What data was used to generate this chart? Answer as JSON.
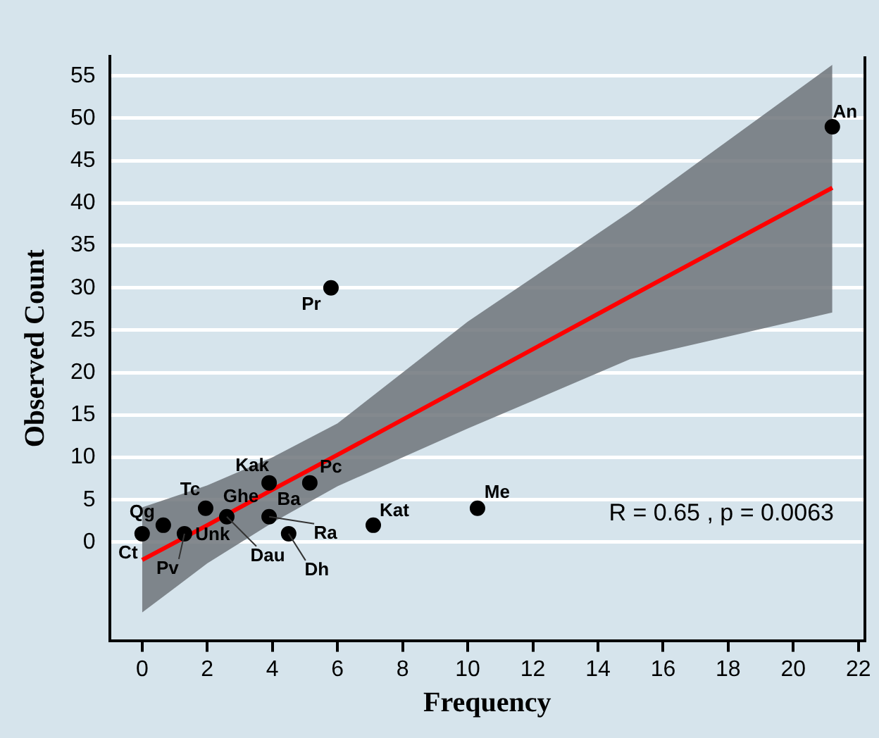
{
  "chart_data": {
    "type": "scatter",
    "xlabel": "Frequency",
    "ylabel": "Observed Count",
    "xlim": [
      -1,
      22.2
    ],
    "xticks": [
      0,
      2,
      4,
      6,
      8,
      10,
      12,
      14,
      16,
      18,
      20,
      22
    ],
    "ylim": [
      -11.6,
      57.3
    ],
    "yticks": [
      0,
      5,
      10,
      15,
      20,
      25,
      30,
      35,
      40,
      45,
      50,
      55
    ],
    "grid": "y",
    "series": [
      {
        "type": "scatter",
        "marker": "circle",
        "color": "#000000",
        "x": [
          0,
          0.65,
          1.3,
          1.95,
          2.6,
          3.9,
          5.15,
          3.9,
          4.5,
          7.1,
          10.3,
          5.8,
          21.2
        ],
        "values": [
          1,
          2,
          1,
          4,
          3,
          7,
          7,
          3,
          1,
          2,
          4,
          30,
          49
        ]
      },
      {
        "type": "line",
        "marker": "none",
        "color": "#ff0000",
        "x": [
          0,
          2,
          4,
          6,
          10,
          15,
          21.2
        ],
        "values": [
          -2.1,
          2.0,
          6.2,
          10.3,
          18.6,
          29,
          41.8
        ],
        "lower": [
          -8.3,
          -2.5,
          2.3,
          6.6,
          13.4,
          21.6,
          27.1
        ],
        "upper": [
          4.1,
          6.7,
          10,
          14,
          26,
          39,
          56.3
        ]
      }
    ],
    "annotations": [
      {
        "text": "Ct",
        "x": 0,
        "y": 1
      },
      {
        "text": "Qg",
        "x": 0.65,
        "y": 2
      },
      {
        "text": "Unk",
        "x": 1.3,
        "y": 1
      },
      {
        "text": "Pv",
        "x": 1.3,
        "y": 1
      },
      {
        "text": "Tc",
        "x": 1.95,
        "y": 4
      },
      {
        "text": "Ghe",
        "x": 2.6,
        "y": 3
      },
      {
        "text": "Dau",
        "x": 2.6,
        "y": 3
      },
      {
        "text": "Kak",
        "x": 3.9,
        "y": 7
      },
      {
        "text": "Pc",
        "x": 5.15,
        "y": 7
      },
      {
        "text": "Ba",
        "x": 3.9,
        "y": 3
      },
      {
        "text": "Ra",
        "x": 3.9,
        "y": 3
      },
      {
        "text": "Dh",
        "x": 4.5,
        "y": 1
      },
      {
        "text": "Kat",
        "x": 7.1,
        "y": 2
      },
      {
        "text": "Me",
        "x": 10.3,
        "y": 4
      },
      {
        "text": "Pr",
        "x": 5.8,
        "y": 30
      },
      {
        "text": "An",
        "x": 21.2,
        "y": 49
      },
      "R = 0.65 , p = 0.0063"
    ]
  }
}
